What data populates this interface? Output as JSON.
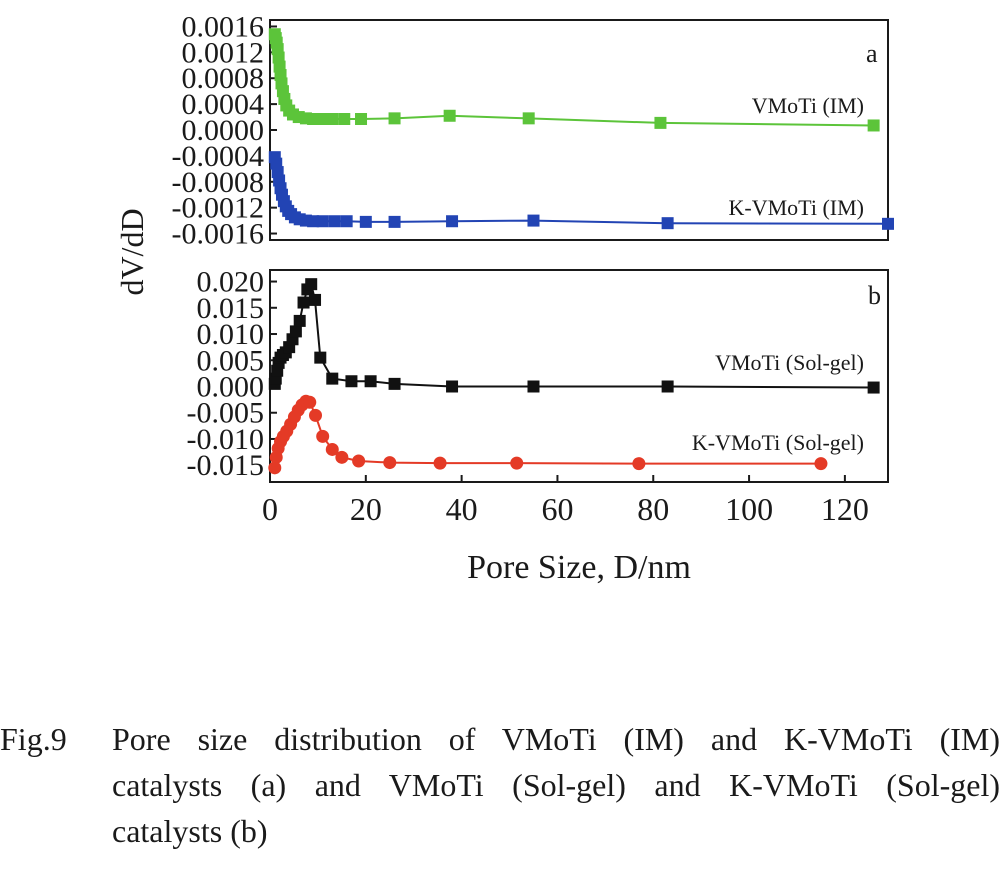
{
  "caption": {
    "label": "Fig.9",
    "line1": "Pore size distribution of VMoTi (IM) and K-VMoTi (IM)",
    "line2": "catalysts (a) and VMoTi (Sol-gel) and K-VMoTi (Sol-gel)",
    "line3": "catalysts (b)"
  },
  "axes": {
    "ylabel": "dV/dD",
    "xlabel": "Pore Size, D/nm"
  },
  "chart_data": [
    {
      "panel": "a",
      "type": "scatter",
      "xlim": [
        0,
        129
      ],
      "ylim": [
        -0.0017,
        0.0017
      ],
      "yticks": [
        "0.0016",
        "0.0012",
        "0.0008",
        "0.0004",
        "0.0000",
        "-0.0004",
        "-0.0008",
        "-0.0012",
        "-0.0016"
      ],
      "ytick_values": [
        0.0016,
        0.0012,
        0.0008,
        0.0004,
        0.0,
        -0.0004,
        -0.0008,
        -0.0012,
        -0.0016
      ],
      "series": [
        {
          "name": "VMoTi (IM)",
          "color": "#5cc43a",
          "marker": "square",
          "points": [
            [
              1.0,
              0.00148
            ],
            [
              1.2,
              0.00142
            ],
            [
              1.4,
              0.00135
            ],
            [
              1.6,
              0.00125
            ],
            [
              1.8,
              0.00112
            ],
            [
              2.0,
              0.00098
            ],
            [
              2.2,
              0.00085
            ],
            [
              2.4,
              0.00072
            ],
            [
              2.7,
              0.0006
            ],
            [
              3.0,
              0.00048
            ],
            [
              3.4,
              0.00038
            ],
            [
              4.0,
              0.0003
            ],
            [
              4.8,
              0.00024
            ],
            [
              6,
              0.0002
            ],
            [
              7.5,
              0.00018
            ],
            [
              9,
              0.00017
            ],
            [
              11,
              0.00017
            ],
            [
              13,
              0.00017
            ],
            [
              15.5,
              0.00017
            ],
            [
              19,
              0.00017
            ],
            [
              26,
              0.00018
            ],
            [
              37.5,
              0.00022
            ],
            [
              54,
              0.00018
            ],
            [
              81.5,
              0.00011
            ],
            [
              126,
              7e-05
            ]
          ]
        },
        {
          "name": "K-VMoTi (IM)",
          "color": "#2244b4",
          "marker": "square",
          "points": [
            [
              1.0,
              -0.00042
            ],
            [
              1.3,
              -0.00052
            ],
            [
              1.6,
              -0.00065
            ],
            [
              1.9,
              -0.00078
            ],
            [
              2.2,
              -0.0009
            ],
            [
              2.5,
              -0.001
            ],
            [
              2.9,
              -0.0011
            ],
            [
              3.3,
              -0.00118
            ],
            [
              3.8,
              -0.00125
            ],
            [
              4.4,
              -0.0013
            ],
            [
              5.2,
              -0.00135
            ],
            [
              6.2,
              -0.00138
            ],
            [
              7.5,
              -0.0014
            ],
            [
              9,
              -0.00141
            ],
            [
              11,
              -0.00141
            ],
            [
              13.5,
              -0.00141
            ],
            [
              16,
              -0.00141
            ],
            [
              20,
              -0.00142
            ],
            [
              26,
              -0.00142
            ],
            [
              38,
              -0.00141
            ],
            [
              55,
              -0.0014
            ],
            [
              83,
              -0.00144
            ],
            [
              129,
              -0.00145
            ]
          ]
        }
      ]
    },
    {
      "panel": "b",
      "type": "scatter",
      "xlim": [
        0,
        129
      ],
      "ylim": [
        -0.0182,
        0.0222
      ],
      "yticks": [
        "0.020",
        "0.015",
        "0.010",
        "0.005",
        "0.000",
        "-0.005",
        "-0.010",
        "-0.015"
      ],
      "ytick_values": [
        0.02,
        0.015,
        0.01,
        0.005,
        0.0,
        -0.005,
        -0.01,
        -0.015
      ],
      "xticks": [
        "0",
        "20",
        "40",
        "60",
        "80",
        "100",
        "120"
      ],
      "xtick_values": [
        0,
        20,
        40,
        60,
        80,
        100,
        120
      ],
      "series": [
        {
          "name": "VMoTi (Sol-gel)",
          "color": "#111111",
          "marker": "square",
          "points": [
            [
              1.0,
              0.0005
            ],
            [
              1.2,
              0.0015
            ],
            [
              1.5,
              0.003
            ],
            [
              1.8,
              0.0045
            ],
            [
              2.2,
              0.0055
            ],
            [
              2.7,
              0.006
            ],
            [
              3.3,
              0.0065
            ],
            [
              4.0,
              0.0075
            ],
            [
              4.7,
              0.009
            ],
            [
              5.4,
              0.0105
            ],
            [
              6.2,
              0.0125
            ],
            [
              7.0,
              0.016
            ],
            [
              7.8,
              0.0185
            ],
            [
              8.6,
              0.0195
            ],
            [
              9.4,
              0.0165
            ],
            [
              10.5,
              0.0055
            ],
            [
              13,
              0.0015
            ],
            [
              17,
              0.001
            ],
            [
              21,
              0.001
            ],
            [
              26,
              0.0005
            ],
            [
              38,
              0.0
            ],
            [
              55,
              0.0
            ],
            [
              83,
              0.0
            ],
            [
              126,
              -0.0002
            ]
          ]
        },
        {
          "name": "K-VMoTi (Sol-gel)",
          "color": "#e43a26",
          "marker": "circle",
          "points": [
            [
              1.0,
              -0.0155
            ],
            [
              1.3,
              -0.0135
            ],
            [
              1.7,
              -0.0118
            ],
            [
              2.2,
              -0.0105
            ],
            [
              2.8,
              -0.0095
            ],
            [
              3.5,
              -0.0085
            ],
            [
              4.3,
              -0.0072
            ],
            [
              5.1,
              -0.0058
            ],
            [
              5.9,
              -0.0045
            ],
            [
              6.7,
              -0.0035
            ],
            [
              7.5,
              -0.0028
            ],
            [
              8.3,
              -0.003
            ],
            [
              9.5,
              -0.0055
            ],
            [
              11,
              -0.0095
            ],
            [
              13,
              -0.012
            ],
            [
              15,
              -0.0135
            ],
            [
              18.5,
              -0.0142
            ],
            [
              25,
              -0.0145
            ],
            [
              35.5,
              -0.0146
            ],
            [
              51.5,
              -0.0146
            ],
            [
              77,
              -0.0147
            ],
            [
              115,
              -0.0147
            ]
          ]
        }
      ]
    }
  ]
}
